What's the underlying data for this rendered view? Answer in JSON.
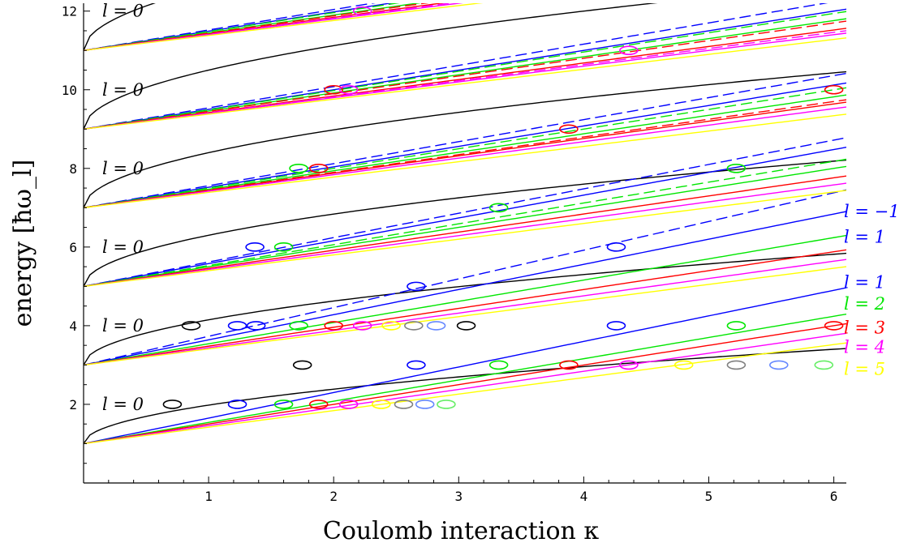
{
  "chart_data": {
    "type": "line",
    "xlabel": "Coulomb interaction κ",
    "ylabel": "energy [ħω_l]",
    "xlim": [
      0,
      6.1
    ],
    "ylim": [
      0,
      12.2
    ],
    "x_ticks": [
      "1",
      "2",
      "3",
      "4",
      "5",
      "6"
    ],
    "y_ticks": [
      "2",
      "4",
      "6",
      "8",
      "10",
      "12"
    ],
    "grid": false,
    "colors": {
      "l0": "#000000",
      "lm1": "#0000ff",
      "l1": "#0000ff",
      "l2": "#00e600",
      "l3": "#ff0000",
      "l4": "#ff00ff",
      "l5": "#ffff00"
    },
    "left_labels": [
      {
        "text": "l = 0",
        "energy": 12
      },
      {
        "text": "l = 0",
        "energy": 10
      },
      {
        "text": "l = 0",
        "energy": 8
      },
      {
        "text": "l = 0",
        "energy": 6
      },
      {
        "text": "l = 0",
        "energy": 4
      },
      {
        "text": "l = 0",
        "energy": 2
      }
    ],
    "right_labels": [
      {
        "text": "l = −1",
        "color": "#0000ff",
        "energy": 6.9
      },
      {
        "text": "l = 1",
        "color": "#0000ff",
        "energy": 6.25
      },
      {
        "text": "l = 1",
        "color": "#0000ff",
        "energy": 5.1
      },
      {
        "text": "l = 2",
        "color": "#00e600",
        "energy": 4.55
      },
      {
        "text": "l = 3",
        "color": "#ff0000",
        "energy": 3.95
      },
      {
        "text": "l = 4",
        "color": "#ff00ff",
        "energy": 3.45
      },
      {
        "text": "l = 5",
        "color": "#ffff00",
        "energy": 2.9
      }
    ],
    "series": [
      {
        "group": "n0",
        "l": 0,
        "dash": false,
        "start": 1,
        "k": 0.98,
        "p": 0.5,
        "color": "#000000"
      },
      {
        "group": "n0",
        "l": 1,
        "dash": false,
        "start": 1,
        "k": 0.65,
        "p": 1,
        "color": "#0000ff"
      },
      {
        "group": "n0",
        "l": 2,
        "dash": false,
        "start": 1,
        "k": 0.54,
        "p": 1,
        "color": "#00e600"
      },
      {
        "group": "n0",
        "l": 3,
        "dash": false,
        "start": 1,
        "k": 0.5,
        "p": 1,
        "color": "#ff0000"
      },
      {
        "group": "n0",
        "l": 4,
        "dash": false,
        "start": 1,
        "k": 0.46,
        "p": 1,
        "color": "#ff00ff"
      },
      {
        "group": "n0",
        "l": 5,
        "dash": false,
        "start": 1,
        "k": 0.42,
        "p": 1,
        "color": "#ffff00"
      },
      {
        "group": "n1",
        "l": 0,
        "dash": false,
        "start": 3,
        "k": 1.15,
        "p": 0.5,
        "color": "#000000"
      },
      {
        "group": "n1",
        "l": -1,
        "dash": true,
        "start": 3,
        "k": 0.73,
        "p": 1,
        "color": "#0000ff"
      },
      {
        "group": "n1",
        "l": 1,
        "dash": false,
        "start": 3,
        "k": 0.64,
        "p": 1,
        "color": "#0000ff"
      },
      {
        "group": "n1",
        "l": 2,
        "dash": false,
        "start": 3,
        "k": 0.54,
        "p": 1,
        "color": "#00e600"
      },
      {
        "group": "n1",
        "l": 3,
        "dash": false,
        "start": 3,
        "k": 0.48,
        "p": 1,
        "color": "#ff0000"
      },
      {
        "group": "n1",
        "l": 4,
        "dash": false,
        "start": 3,
        "k": 0.44,
        "p": 1,
        "color": "#ff00ff"
      },
      {
        "group": "n1",
        "l": 5,
        "dash": false,
        "start": 3,
        "k": 0.41,
        "p": 1,
        "color": "#ffff00"
      },
      {
        "group": "n2",
        "l": 0,
        "dash": false,
        "start": 5,
        "k": 1.3,
        "p": 0.5,
        "color": "#000000"
      },
      {
        "group": "n2",
        "l": -1,
        "dash": true,
        "start": 5,
        "k": 0.62,
        "p": 1,
        "color": "#0000ff"
      },
      {
        "group": "n2",
        "l": 1,
        "dash": false,
        "start": 5,
        "k": 0.58,
        "p": 1,
        "color": "#0000ff"
      },
      {
        "group": "n2",
        "l": 2,
        "dash": true,
        "start": 5,
        "k": 0.53,
        "p": 1,
        "color": "#00e600"
      },
      {
        "group": "n2",
        "l": 2,
        "dash": false,
        "start": 5,
        "k": 0.5,
        "p": 1,
        "color": "#00e600"
      },
      {
        "group": "n2",
        "l": 3,
        "dash": false,
        "start": 5,
        "k": 0.46,
        "p": 1,
        "color": "#ff0000"
      },
      {
        "group": "n2",
        "l": 4,
        "dash": false,
        "start": 5,
        "k": 0.43,
        "p": 1,
        "color": "#ff00ff"
      },
      {
        "group": "n2",
        "l": 5,
        "dash": false,
        "start": 5,
        "k": 0.4,
        "p": 1,
        "color": "#ffff00"
      },
      {
        "group": "n3",
        "l": 0,
        "dash": false,
        "start": 7,
        "k": 1.4,
        "p": 0.5,
        "color": "#000000"
      },
      {
        "group": "n3",
        "l": -1,
        "dash": true,
        "start": 7,
        "k": 0.56,
        "p": 1,
        "color": "#0000ff"
      },
      {
        "group": "n3",
        "l": 1,
        "dash": false,
        "start": 7,
        "k": 0.52,
        "p": 1,
        "color": "#0000ff"
      },
      {
        "group": "n3",
        "l": 2,
        "dash": true,
        "start": 7,
        "k": 0.5,
        "p": 1,
        "color": "#00e600"
      },
      {
        "group": "n3",
        "l": 2,
        "dash": false,
        "start": 7,
        "k": 0.47,
        "p": 1,
        "color": "#00e600"
      },
      {
        "group": "n3",
        "l": 3,
        "dash": true,
        "start": 7,
        "k": 0.45,
        "p": 1,
        "color": "#ff0000"
      },
      {
        "group": "n3",
        "l": 3,
        "dash": false,
        "start": 7,
        "k": 0.44,
        "p": 1,
        "color": "#ff0000"
      },
      {
        "group": "n3",
        "l": 4,
        "dash": false,
        "start": 7,
        "k": 0.42,
        "p": 1,
        "color": "#ff00ff"
      },
      {
        "group": "n3",
        "l": 5,
        "dash": false,
        "start": 7,
        "k": 0.39,
        "p": 1,
        "color": "#ffff00"
      },
      {
        "group": "n4",
        "l": 0,
        "dash": false,
        "start": 9,
        "k": 1.5,
        "p": 0.5,
        "color": "#000000"
      },
      {
        "group": "n4",
        "l": -1,
        "dash": true,
        "start": 9,
        "k": 0.54,
        "p": 1,
        "color": "#0000ff"
      },
      {
        "group": "n4",
        "l": 1,
        "dash": false,
        "start": 9,
        "k": 0.5,
        "p": 1,
        "color": "#0000ff"
      },
      {
        "group": "n4",
        "l": 2,
        "dash": true,
        "start": 9,
        "k": 0.49,
        "p": 1,
        "color": "#00e600"
      },
      {
        "group": "n4",
        "l": 2,
        "dash": false,
        "start": 9,
        "k": 0.46,
        "p": 1,
        "color": "#00e600"
      },
      {
        "group": "n4",
        "l": 3,
        "dash": true,
        "start": 9,
        "k": 0.45,
        "p": 1,
        "color": "#ff0000"
      },
      {
        "group": "n4",
        "l": 3,
        "dash": false,
        "start": 9,
        "k": 0.42,
        "p": 1,
        "color": "#ff0000"
      },
      {
        "group": "n4",
        "l": 4,
        "dash": true,
        "start": 9,
        "k": 0.41,
        "p": 1,
        "color": "#ff00ff"
      },
      {
        "group": "n4",
        "l": 4,
        "dash": false,
        "start": 9,
        "k": 0.4,
        "p": 1,
        "color": "#ff00ff"
      },
      {
        "group": "n4",
        "l": 5,
        "dash": false,
        "start": 9,
        "k": 0.38,
        "p": 1,
        "color": "#ffff00"
      },
      {
        "group": "n5",
        "l": 0,
        "dash": false,
        "start": 11,
        "k": 1.6,
        "p": 0.5,
        "color": "#000000"
      },
      {
        "group": "n5",
        "l": -1,
        "dash": true,
        "start": 11,
        "k": 0.52,
        "p": 1,
        "color": "#0000ff"
      },
      {
        "group": "n5",
        "l": 1,
        "dash": false,
        "start": 11,
        "k": 0.49,
        "p": 1,
        "color": "#0000ff"
      },
      {
        "group": "n5",
        "l": 2,
        "dash": true,
        "start": 11,
        "k": 0.48,
        "p": 1,
        "color": "#00e600"
      },
      {
        "group": "n5",
        "l": 2,
        "dash": false,
        "start": 11,
        "k": 0.45,
        "p": 1,
        "color": "#00e600"
      },
      {
        "group": "n5",
        "l": 3,
        "dash": true,
        "start": 11,
        "k": 0.44,
        "p": 1,
        "color": "#ff0000"
      },
      {
        "group": "n5",
        "l": 3,
        "dash": false,
        "start": 11,
        "k": 0.42,
        "p": 1,
        "color": "#ff0000"
      },
      {
        "group": "n5",
        "l": 4,
        "dash": true,
        "start": 11,
        "k": 0.41,
        "p": 1,
        "color": "#ff00ff"
      },
      {
        "group": "n5",
        "l": 4,
        "dash": false,
        "start": 11,
        "k": 0.4,
        "p": 1,
        "color": "#ff00ff"
      },
      {
        "group": "n5",
        "l": 5,
        "dash": false,
        "start": 11,
        "k": 0.38,
        "p": 1,
        "color": "#ffff00"
      }
    ],
    "markers": [
      {
        "x": 0.71,
        "y": 2,
        "color": "#000000"
      },
      {
        "x": 1.23,
        "y": 2,
        "color": "#0000ff"
      },
      {
        "x": 1.6,
        "y": 2,
        "color": "#00e600"
      },
      {
        "x": 1.88,
        "y": 2,
        "color": "#ff0000"
      },
      {
        "x": 2.12,
        "y": 2,
        "color": "#ff00ff"
      },
      {
        "x": 2.38,
        "y": 2,
        "color": "#ffff00"
      },
      {
        "x": 2.56,
        "y": 2,
        "color": "#808080"
      },
      {
        "x": 2.73,
        "y": 2,
        "color": "#6688ff"
      },
      {
        "x": 2.9,
        "y": 2,
        "color": "#66ee66"
      },
      {
        "x": 1.75,
        "y": 3,
        "color": "#000000"
      },
      {
        "x": 2.66,
        "y": 3,
        "color": "#0000ff"
      },
      {
        "x": 3.32,
        "y": 3,
        "color": "#00e600"
      },
      {
        "x": 3.88,
        "y": 3,
        "color": "#ff0000"
      },
      {
        "x": 4.36,
        "y": 3,
        "color": "#ff00ff"
      },
      {
        "x": 4.8,
        "y": 3,
        "color": "#ffff00"
      },
      {
        "x": 5.22,
        "y": 3,
        "color": "#808080"
      },
      {
        "x": 5.56,
        "y": 3,
        "color": "#6688ff"
      },
      {
        "x": 5.92,
        "y": 3,
        "color": "#66ee66"
      },
      {
        "x": 0.86,
        "y": 4,
        "color": "#000000"
      },
      {
        "x": 1.23,
        "y": 4,
        "color": "#0000ff"
      },
      {
        "x": 1.38,
        "y": 4,
        "color": "#0000ff"
      },
      {
        "x": 1.72,
        "y": 4,
        "color": "#00e600"
      },
      {
        "x": 2.0,
        "y": 4,
        "color": "#ff0000"
      },
      {
        "x": 2.23,
        "y": 4,
        "color": "#ff00ff"
      },
      {
        "x": 2.46,
        "y": 4,
        "color": "#ffff00"
      },
      {
        "x": 2.64,
        "y": 4,
        "color": "#808080"
      },
      {
        "x": 2.82,
        "y": 4,
        "color": "#6688ff"
      },
      {
        "x": 3.06,
        "y": 4,
        "color": "#000000"
      },
      {
        "x": 4.26,
        "y": 4,
        "color": "#0000ff"
      },
      {
        "x": 5.22,
        "y": 4,
        "color": "#00e600"
      },
      {
        "x": 6.0,
        "y": 4,
        "color": "#ff0000"
      },
      {
        "x": 2.66,
        "y": 5,
        "color": "#0000ff"
      },
      {
        "x": 1.37,
        "y": 6,
        "color": "#0000ff"
      },
      {
        "x": 1.6,
        "y": 6,
        "color": "#00e600"
      },
      {
        "x": 4.26,
        "y": 6,
        "color": "#0000ff"
      },
      {
        "x": 3.32,
        "y": 7,
        "color": "#00e600"
      },
      {
        "x": 1.72,
        "y": 8,
        "color": "#00e600"
      },
      {
        "x": 1.88,
        "y": 8,
        "color": "#ff0000"
      },
      {
        "x": 5.22,
        "y": 8,
        "color": "#00e600"
      },
      {
        "x": 3.88,
        "y": 9,
        "color": "#ff0000"
      },
      {
        "x": 2.0,
        "y": 10,
        "color": "#ff0000"
      },
      {
        "x": 2.12,
        "y": 10,
        "color": "#ff00ff"
      },
      {
        "x": 6.0,
        "y": 10,
        "color": "#ff0000"
      },
      {
        "x": 4.36,
        "y": 11,
        "color": "#ff00ff"
      },
      {
        "x": 2.23,
        "y": 12,
        "color": "#ff00ff"
      }
    ]
  }
}
